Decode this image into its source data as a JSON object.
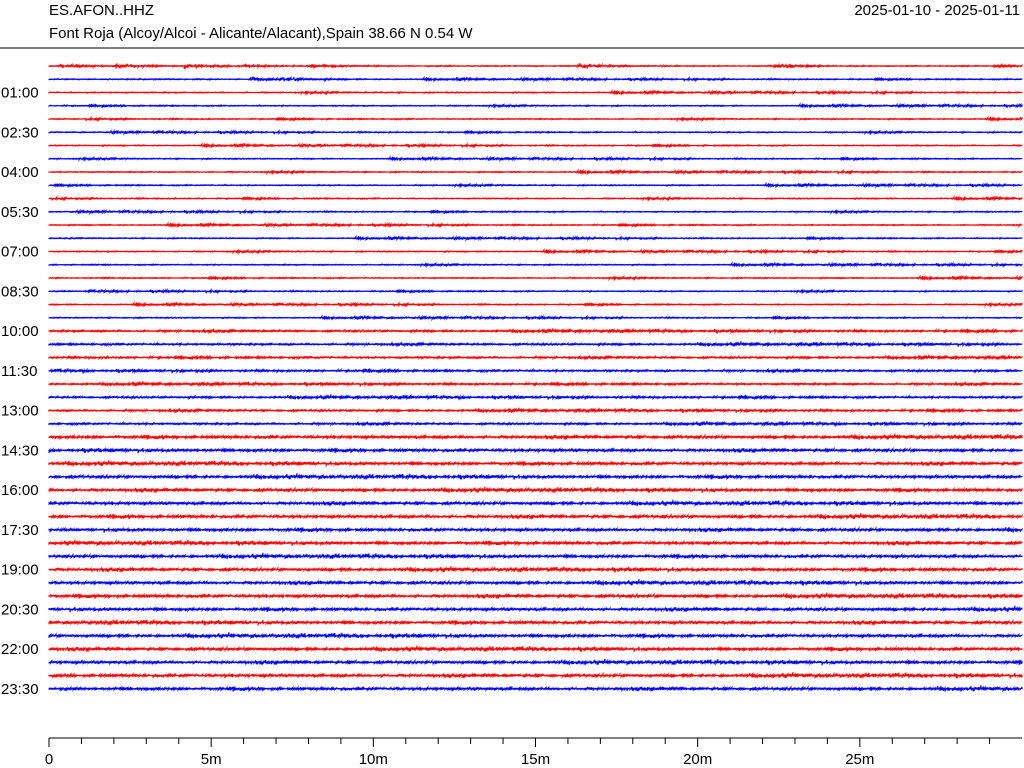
{
  "header": {
    "station": "ES.AFON..HHZ",
    "date_range": "2025-01-10 - 2025-01-11",
    "location": "Font Roja (Alcoy/Alcoi - Alicante/Alacant),Spain  38.66 N 0.54 W"
  },
  "chart_data": {
    "type": "line",
    "subtype": "helicorder",
    "title": "",
    "rows_per_day": 48,
    "minutes_per_row": 30,
    "row_colors": [
      "#ff0000",
      "#0000ff"
    ],
    "y_tick_labels": [
      "01:00",
      "02:30",
      "04:00",
      "05:30",
      "07:00",
      "08:30",
      "10:00",
      "11:30",
      "13:00",
      "14:30",
      "16:00",
      "17:30",
      "19:00",
      "20:30",
      "22:00",
      "23:30"
    ],
    "y_tick_hours": [
      1,
      2.5,
      4,
      5.5,
      7,
      8.5,
      10,
      11.5,
      13,
      14.5,
      16,
      17.5,
      19,
      20.5,
      22,
      23.5
    ],
    "x_tick_labels": [
      "0",
      "5m",
      "10m",
      "15m",
      "20m",
      "25m"
    ],
    "x_tick_minutes": [
      0,
      5,
      10,
      15,
      20,
      25
    ],
    "xlim": [
      0,
      30
    ],
    "xlabel": "",
    "ylabel": "",
    "grid": false,
    "legend": "none"
  }
}
